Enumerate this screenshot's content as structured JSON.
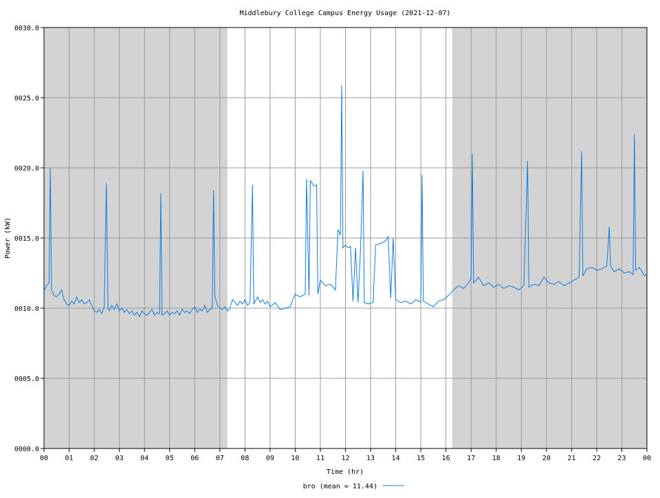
{
  "chart_data": {
    "type": "line",
    "title": "Middlebury College Campus Energy Usage (2021-12-07)",
    "x_label": "Time (hr)",
    "y_label": "Power (kW)",
    "xlim": [
      0,
      24
    ],
    "ylim": [
      0,
      30
    ],
    "xticks": [
      {
        "value": 0,
        "label": "00"
      },
      {
        "value": 1,
        "label": "01"
      },
      {
        "value": 2,
        "label": "02"
      },
      {
        "value": 3,
        "label": "03"
      },
      {
        "value": 4,
        "label": "04"
      },
      {
        "value": 5,
        "label": "05"
      },
      {
        "value": 6,
        "label": "06"
      },
      {
        "value": 7,
        "label": "07"
      },
      {
        "value": 8,
        "label": "08"
      },
      {
        "value": 9,
        "label": "09"
      },
      10,
      11,
      12,
      13,
      14,
      15,
      16,
      17,
      18,
      19,
      20,
      21,
      22,
      23,
      {
        "value": 24,
        "label": "00"
      }
    ],
    "yticks": [
      {
        "value": 0,
        "label": "0000.0"
      },
      {
        "value": 5,
        "label": "0005.0"
      },
      {
        "value": 10,
        "label": "0010.0"
      },
      {
        "value": 15,
        "label": "0015.0"
      },
      {
        "value": 20,
        "label": "0020.0"
      },
      {
        "value": 25,
        "label": "0025.0"
      },
      {
        "value": 30,
        "label": "0030.0"
      }
    ],
    "grid": true,
    "shaded_ranges": [
      [
        0,
        7.3
      ],
      [
        16.25,
        24
      ]
    ],
    "shade_color": "#d3d3d3",
    "legend": "bottom",
    "x": [
      0,
      0.1,
      0.2,
      0.25,
      0.3,
      0.4,
      0.5,
      0.6,
      0.7,
      0.8,
      0.9,
      1.0,
      1.1,
      1.2,
      1.3,
      1.4,
      1.5,
      1.6,
      1.7,
      1.8,
      1.9,
      2.0,
      2.1,
      2.2,
      2.3,
      2.4,
      2.48,
      2.55,
      2.6,
      2.7,
      2.8,
      2.9,
      3.0,
      3.1,
      3.2,
      3.3,
      3.4,
      3.5,
      3.6,
      3.7,
      3.8,
      3.9,
      4.0,
      4.1,
      4.2,
      4.3,
      4.4,
      4.5,
      4.6,
      4.65,
      4.7,
      4.8,
      4.9,
      5.0,
      5.1,
      5.2,
      5.3,
      5.4,
      5.5,
      5.6,
      5.7,
      5.8,
      5.9,
      6.0,
      6.1,
      6.2,
      6.3,
      6.4,
      6.5,
      6.6,
      6.7,
      6.75,
      6.8,
      6.9,
      7.0,
      7.1,
      7.2,
      7.3,
      7.4,
      7.5,
      7.6,
      7.7,
      7.8,
      7.9,
      8.0,
      8.1,
      8.2,
      8.3,
      8.35,
      8.5,
      8.6,
      8.7,
      8.8,
      8.9,
      9.0,
      9.2,
      9.4,
      9.6,
      9.8,
      9.9,
      10.0,
      10.2,
      10.4,
      10.45,
      10.55,
      10.6,
      10.75,
      10.85,
      10.9,
      11.0,
      11.2,
      11.4,
      11.6,
      11.7,
      11.8,
      11.85,
      11.9,
      12.0,
      12.1,
      12.2,
      12.3,
      12.4,
      12.5,
      12.6,
      12.7,
      12.75,
      12.9,
      13.1,
      13.2,
      13.4,
      13.6,
      13.7,
      13.8,
      13.9,
      14.0,
      14.2,
      14.4,
      14.6,
      14.8,
      15.0,
      15.05,
      15.1,
      15.3,
      15.5,
      15.7,
      15.9,
      16.1,
      16.3,
      16.5,
      16.7,
      16.9,
      17.0,
      17.05,
      17.1,
      17.3,
      17.5,
      17.7,
      17.9,
      18.1,
      18.3,
      18.5,
      18.7,
      18.9,
      19.1,
      19.25,
      19.3,
      19.5,
      19.7,
      19.9,
      20.1,
      20.3,
      20.5,
      20.7,
      20.9,
      21.1,
      21.3,
      21.4,
      21.45,
      21.6,
      21.8,
      22.0,
      22.2,
      22.4,
      22.5,
      22.55,
      22.7,
      22.9,
      23.1,
      23.3,
      23.45,
      23.5,
      23.55,
      23.7,
      23.9,
      24.0
    ],
    "series": [
      {
        "name": "bro (mean = 11.44)",
        "color": "#0a7be0",
        "values": [
          11.2,
          11.6,
          11.8,
          20.0,
          11.3,
          10.9,
          10.8,
          11.0,
          11.3,
          10.6,
          10.3,
          10.2,
          10.5,
          10.3,
          10.8,
          10.4,
          10.6,
          10.3,
          10.4,
          10.6,
          10.2,
          9.8,
          9.7,
          9.9,
          9.6,
          10.1,
          18.9,
          10.0,
          9.8,
          10.2,
          9.9,
          10.3,
          9.8,
          10.0,
          9.7,
          9.9,
          9.6,
          9.8,
          9.5,
          9.7,
          9.4,
          9.8,
          9.6,
          9.5,
          9.7,
          9.9,
          9.5,
          9.7,
          9.6,
          18.2,
          9.5,
          9.6,
          9.8,
          9.5,
          9.7,
          9.6,
          9.8,
          9.5,
          9.9,
          9.7,
          9.8,
          9.6,
          9.9,
          10.1,
          9.7,
          9.9,
          9.8,
          10.2,
          9.7,
          9.9,
          10.0,
          18.4,
          10.9,
          10.2,
          10.0,
          9.9,
          10.1,
          9.8,
          10.0,
          10.6,
          10.4,
          10.2,
          10.5,
          10.3,
          10.6,
          10.2,
          10.4,
          18.8,
          10.3,
          10.8,
          10.4,
          10.6,
          10.3,
          10.5,
          10.1,
          10.4,
          9.9,
          10.0,
          10.1,
          10.6,
          11.0,
          10.8,
          11.0,
          19.2,
          10.9,
          19.1,
          18.7,
          18.8,
          11.0,
          12.0,
          11.6,
          11.7,
          11.3,
          15.6,
          15.2,
          25.9,
          14.3,
          14.5,
          14.3,
          14.4,
          10.5,
          14.3,
          10.4,
          14.2,
          19.8,
          10.4,
          10.3,
          10.4,
          14.5,
          14.6,
          14.8,
          15.1,
          10.7,
          15.0,
          10.6,
          10.4,
          10.5,
          10.3,
          10.6,
          10.4,
          19.5,
          10.5,
          10.3,
          10.1,
          10.5,
          10.6,
          10.9,
          11.3,
          11.6,
          11.4,
          11.8,
          12.1,
          21.0,
          11.8,
          12.2,
          11.6,
          11.8,
          11.5,
          11.7,
          11.4,
          11.6,
          11.5,
          11.3,
          11.6,
          20.5,
          11.5,
          11.7,
          11.6,
          12.2,
          11.8,
          11.7,
          11.9,
          11.6,
          11.8,
          12.0,
          12.2,
          21.2,
          12.3,
          12.8,
          12.9,
          12.7,
          12.8,
          13.0,
          15.8,
          13.0,
          12.6,
          12.8,
          12.5,
          12.6,
          12.4,
          22.4,
          12.7,
          12.9,
          12.3,
          12.5
        ]
      }
    ]
  }
}
